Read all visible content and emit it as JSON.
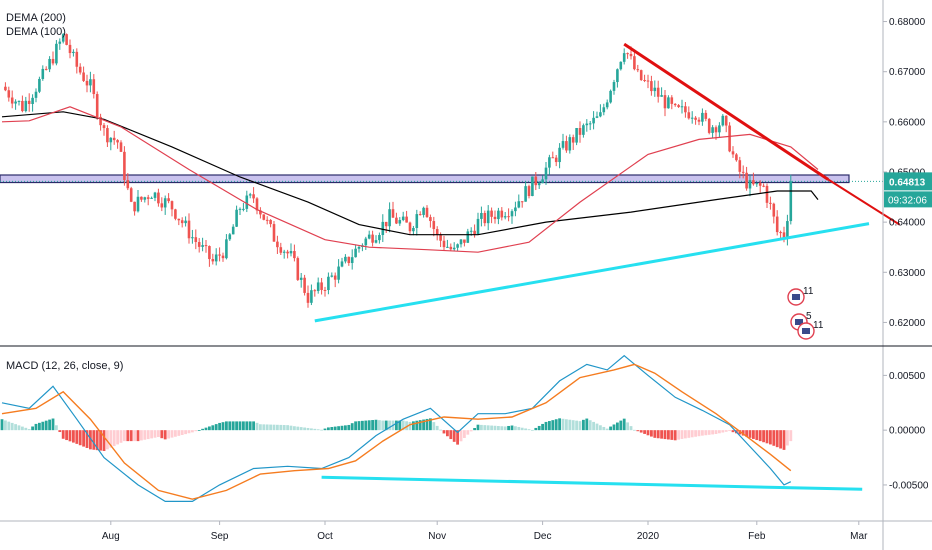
{
  "colors": {
    "up": "#26a69a",
    "down": "#ef5350",
    "dema200": "#000000",
    "dema100": "#e04050",
    "resistance": "#e01010",
    "support": "#26e0f0",
    "zone_fill": "#c9c2ee",
    "zone_border": "#2b2b6a",
    "macd_line": "#2196c8",
    "signal_line": "#f57c20",
    "hist_up_strong": "#26a69a",
    "hist_up_weak": "#b2dfdb",
    "hist_down_strong": "#ef5350",
    "hist_down_weak": "#ffcdd2",
    "price_badge": "#26a69a"
  },
  "legend": {
    "dema200": "DEMA (200)",
    "dema100": "DEMA (100)",
    "macd": "MACD (12, 26, close, 9)"
  },
  "price_badge": {
    "price": "0.64813",
    "countdown": "09:32:06"
  },
  "events": [
    {
      "label": "11",
      "icon": "flag-icon"
    },
    {
      "label": "5",
      "icon": "flag-icon"
    },
    {
      "label": "11",
      "icon": "flag-icon"
    }
  ],
  "chart_data": [
    {
      "type": "candlestick",
      "yticks": [
        "0.68000",
        "0.67000",
        "0.66000",
        "0.65000",
        "0.64000",
        "0.63000",
        "0.62000"
      ],
      "ylim": [
        0.6155,
        0.6835
      ],
      "xticks": [
        "Aug",
        "Sep",
        "Oct",
        "Nov",
        "Dec",
        "2020",
        "Feb",
        "Mar"
      ],
      "last_price": 0.64813,
      "zone": [
        0.6479,
        0.6494
      ],
      "lines": {
        "dema200": [
          [
            0,
            0.661
          ],
          [
            18,
            0.662
          ],
          [
            30,
            0.6605
          ],
          [
            50,
            0.655
          ],
          [
            70,
            0.649
          ],
          [
            90,
            0.644
          ],
          [
            105,
            0.6395
          ],
          [
            120,
            0.6375
          ],
          [
            140,
            0.6375
          ],
          [
            160,
            0.64
          ],
          [
            185,
            0.642
          ],
          [
            210,
            0.6445
          ],
          [
            228,
            0.6462
          ],
          [
            238,
            0.6462
          ],
          [
            240,
            0.6445
          ]
        ],
        "dema100": [
          [
            0,
            0.66
          ],
          [
            8,
            0.6602
          ],
          [
            20,
            0.663
          ],
          [
            35,
            0.659
          ],
          [
            55,
            0.6505
          ],
          [
            75,
            0.6425
          ],
          [
            95,
            0.6365
          ],
          [
            108,
            0.635
          ],
          [
            125,
            0.6345
          ],
          [
            140,
            0.634
          ],
          [
            155,
            0.636
          ],
          [
            170,
            0.644
          ],
          [
            190,
            0.6535
          ],
          [
            205,
            0.6565
          ],
          [
            220,
            0.6575
          ],
          [
            232,
            0.655
          ],
          [
            240,
            0.6505
          ]
        ],
        "resistance": [
          [
            183,
            0.6755
          ],
          [
            243,
            0.6485
          ]
        ],
        "resistance_extended": [
          [
            243,
            0.6485
          ],
          [
            264,
            0.6395
          ]
        ],
        "support": [
          [
            92,
            0.6203
          ],
          [
            255,
            0.6397
          ]
        ]
      },
      "anchors": [
        [
          0,
          0.667
        ],
        [
          6,
          0.663
        ],
        [
          12,
          0.669
        ],
        [
          18,
          0.677
        ],
        [
          22,
          0.671
        ],
        [
          26,
          0.667
        ],
        [
          30,
          0.658
        ],
        [
          34,
          0.656
        ],
        [
          38,
          0.643
        ],
        [
          44,
          0.646
        ],
        [
          50,
          0.643
        ],
        [
          56,
          0.637
        ],
        [
          62,
          0.632
        ],
        [
          66,
          0.635
        ],
        [
          70,
          0.643
        ],
        [
          74,
          0.645
        ],
        [
          80,
          0.637
        ],
        [
          85,
          0.633
        ],
        [
          90,
          0.625
        ],
        [
          94,
          0.627
        ],
        [
          100,
          0.631
        ],
        [
          106,
          0.636
        ],
        [
          110,
          0.638
        ],
        [
          114,
          0.641
        ],
        [
          120,
          0.639
        ],
        [
          124,
          0.644
        ],
        [
          128,
          0.637
        ],
        [
          133,
          0.634
        ],
        [
          140,
          0.64
        ],
        [
          146,
          0.642
        ],
        [
          150,
          0.643
        ],
        [
          154,
          0.646
        ],
        [
          158,
          0.649
        ],
        [
          164,
          0.654
        ],
        [
          170,
          0.658
        ],
        [
          176,
          0.661
        ],
        [
          180,
          0.669
        ],
        [
          183,
          0.675
        ],
        [
          187,
          0.669
        ],
        [
          192,
          0.666
        ],
        [
          198,
          0.662
        ],
        [
          204,
          0.662
        ],
        [
          208,
          0.659
        ],
        [
          212,
          0.66
        ],
        [
          216,
          0.651
        ],
        [
          220,
          0.647
        ],
        [
          224,
          0.647
        ],
        [
          226,
          0.643
        ],
        [
          228,
          0.638
        ],
        [
          230,
          0.6375
        ],
        [
          231,
          0.6415
        ],
        [
          232,
          0.6481
        ]
      ]
    },
    {
      "type": "macd",
      "yticks": [
        "0.00500",
        "0.00000",
        "-0.00500"
      ],
      "ylim": [
        -0.0082,
        0.0075
      ],
      "macd_line": [
        [
          0,
          0.0025
        ],
        [
          8,
          0.002
        ],
        [
          15,
          0.004
        ],
        [
          22,
          0.001
        ],
        [
          30,
          -0.0025
        ],
        [
          40,
          -0.005
        ],
        [
          48,
          -0.0065
        ],
        [
          56,
          -0.0065
        ],
        [
          64,
          -0.005
        ],
        [
          74,
          -0.0035
        ],
        [
          84,
          -0.0033
        ],
        [
          94,
          -0.0035
        ],
        [
          102,
          -0.0025
        ],
        [
          110,
          -0.0005
        ],
        [
          118,
          0.001
        ],
        [
          126,
          0.002
        ],
        [
          134,
          -0.0002
        ],
        [
          140,
          0.0015
        ],
        [
          148,
          0.0015
        ],
        [
          156,
          0.002
        ],
        [
          164,
          0.0045
        ],
        [
          172,
          0.006
        ],
        [
          178,
          0.0055
        ],
        [
          183,
          0.0068
        ],
        [
          190,
          0.005
        ],
        [
          198,
          0.003
        ],
        [
          206,
          0.0018
        ],
        [
          214,
          0.0005
        ],
        [
          220,
          -0.0015
        ],
        [
          226,
          -0.0035
        ],
        [
          230,
          -0.005
        ],
        [
          232,
          -0.0047
        ]
      ],
      "signal_line": [
        [
          0,
          0.0015
        ],
        [
          10,
          0.002
        ],
        [
          18,
          0.0035
        ],
        [
          26,
          0.001
        ],
        [
          36,
          -0.003
        ],
        [
          46,
          -0.0055
        ],
        [
          56,
          -0.0063
        ],
        [
          66,
          -0.0055
        ],
        [
          76,
          -0.004
        ],
        [
          86,
          -0.0037
        ],
        [
          96,
          -0.0035
        ],
        [
          104,
          -0.0028
        ],
        [
          112,
          -0.001
        ],
        [
          120,
          0.0005
        ],
        [
          130,
          0.0012
        ],
        [
          140,
          0.001
        ],
        [
          150,
          0.0012
        ],
        [
          160,
          0.0025
        ],
        [
          170,
          0.0048
        ],
        [
          180,
          0.0055
        ],
        [
          186,
          0.006
        ],
        [
          192,
          0.0052
        ],
        [
          200,
          0.0035
        ],
        [
          210,
          0.0015
        ],
        [
          220,
          -0.0008
        ],
        [
          226,
          -0.0022
        ],
        [
          232,
          -0.0037
        ]
      ],
      "divergence": [
        [
          94,
          -0.0043
        ],
        [
          253,
          -0.0054
        ]
      ]
    }
  ]
}
